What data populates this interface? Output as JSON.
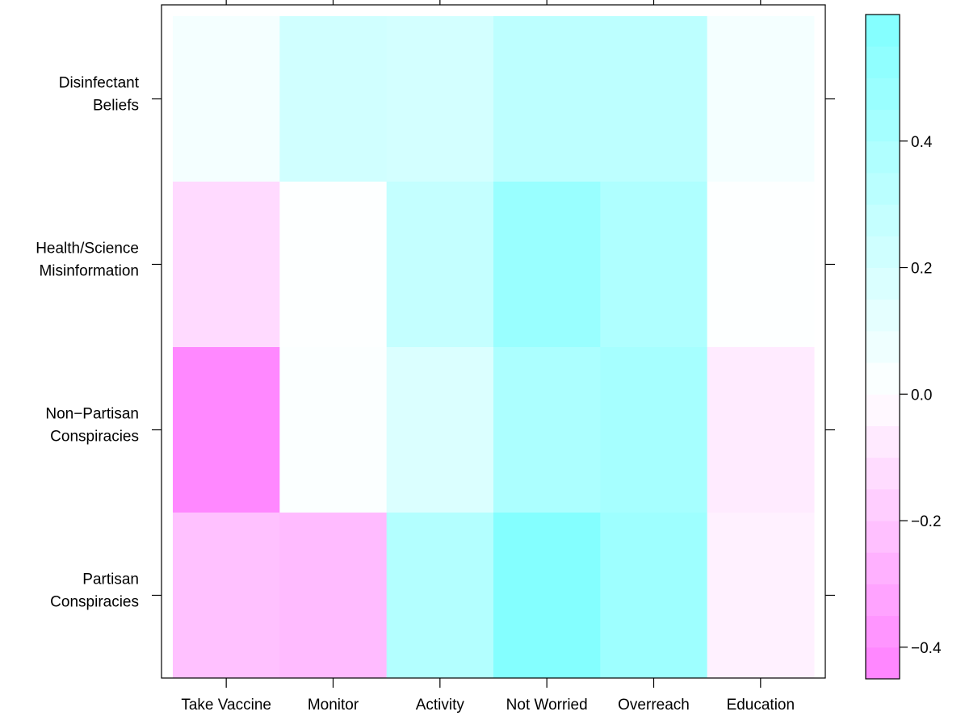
{
  "chart_data": {
    "type": "heatmap",
    "title": "",
    "xlabel": "",
    "ylabel": "",
    "x_categories": [
      "Take Vaccine",
      "Monitor",
      "Activity",
      "Not Worried",
      "Overreach",
      "Education"
    ],
    "y_categories": [
      [
        "Disinfectant",
        "Beliefs"
      ],
      [
        "Health/Science",
        "Misinformation"
      ],
      [
        "Non−Partisan",
        "Conspiracies"
      ],
      [
        "Partisan",
        "Conspiracies"
      ]
    ],
    "values": [
      [
        0.05,
        0.22,
        0.21,
        0.31,
        0.31,
        0.05
      ],
      [
        -0.13,
        0.01,
        0.28,
        0.48,
        0.38,
        0.01
      ],
      [
        -0.42,
        0.02,
        0.17,
        0.39,
        0.42,
        -0.07
      ],
      [
        -0.22,
        -0.24,
        0.36,
        0.58,
        0.46,
        -0.05
      ]
    ],
    "colorbar": {
      "ticks": [
        "−0.4",
        "−0.2",
        "0.0",
        "0.2",
        "0.4"
      ],
      "tick_values": [
        -0.4,
        -0.2,
        0.0,
        0.2,
        0.4
      ],
      "range": [
        -0.45,
        0.6
      ],
      "levels": [
        -0.45,
        -0.4,
        -0.35,
        -0.3,
        -0.25,
        -0.2,
        -0.15,
        -0.1,
        -0.05,
        0.0,
        0.05,
        0.1,
        0.15,
        0.2,
        0.25,
        0.3,
        0.35,
        0.4,
        0.45,
        0.5,
        0.55,
        0.6
      ],
      "low_color": "#ff80ff",
      "mid_color": "#ffffff",
      "high_color": "#80ffff"
    },
    "grid": false,
    "legend": "right"
  }
}
